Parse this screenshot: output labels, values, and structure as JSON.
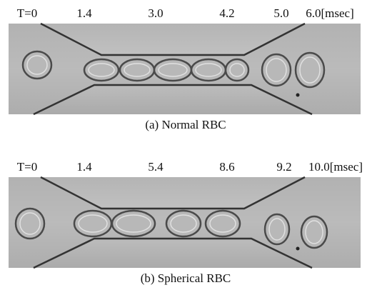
{
  "panels": [
    {
      "time_labels": [
        "T=0",
        "1.4",
        "3.0",
        "4.2",
        "5.0",
        "6.0[msec]"
      ],
      "caption": "(a) Normal RBC"
    },
    {
      "time_labels": [
        "T=0",
        "1.4",
        "5.4",
        "8.6",
        "9.2",
        "10.0[msec]"
      ],
      "caption": "(b) Spherical RBC"
    }
  ]
}
